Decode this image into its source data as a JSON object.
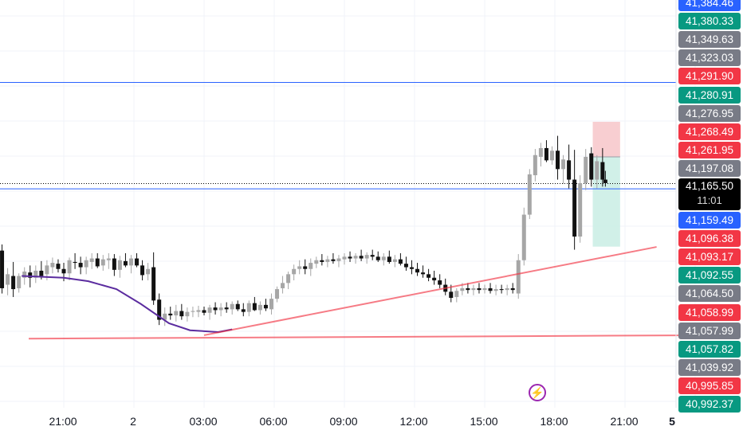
{
  "chart_data": {
    "type": "candlestick",
    "x_axis": {
      "tick_labels": [
        "21:00",
        "2",
        "03:00",
        "06:00",
        "09:00",
        "12:00",
        "15:00",
        "18:00",
        "21:00",
        "5"
      ],
      "bold_labels": [
        "5"
      ]
    },
    "price_labels": [
      {
        "value": "41,384.46",
        "color": "#2962ff"
      },
      {
        "value": "41,380.33",
        "color": "#089981"
      },
      {
        "value": "41,349.63",
        "color": "#787b86"
      },
      {
        "value": "41,323.03",
        "color": "#787b86"
      },
      {
        "value": "41,291.90",
        "color": "#f23645"
      },
      {
        "value": "41,280.91",
        "color": "#089981"
      },
      {
        "value": "41,276.95",
        "color": "#787b86"
      },
      {
        "value": "41,268.49",
        "color": "#f23645"
      },
      {
        "value": "41,261.95",
        "color": "#f23645"
      },
      {
        "value": "41,197.08",
        "color": "#787b86"
      },
      {
        "value": "41,159.49",
        "color": "#2962ff"
      },
      {
        "value": "41,096.38",
        "color": "#f23645"
      },
      {
        "value": "41,093.17",
        "color": "#f23645"
      },
      {
        "value": "41,092.55",
        "color": "#089981"
      },
      {
        "value": "41,064.50",
        "color": "#787b86"
      },
      {
        "value": "41,058.99",
        "color": "#f23645"
      },
      {
        "value": "41,057.99",
        "color": "#787b86"
      },
      {
        "value": "41,057.82",
        "color": "#089981"
      },
      {
        "value": "41,039.92",
        "color": "#787b86"
      },
      {
        "value": "40,995.85",
        "color": "#f23645"
      },
      {
        "value": "40,992.37",
        "color": "#089981"
      }
    ],
    "current_price": {
      "value": "41,165.50",
      "countdown": "11:01",
      "color": "#000000"
    },
    "horizontal_lines": [
      {
        "price": 41280.91,
        "color": "#2962ff"
      },
      {
        "price": 41165.5,
        "color": "#000000",
        "style": "dotted"
      },
      {
        "price": 41159.49,
        "color": "#2962ff"
      }
    ],
    "trend_lines": [
      {
        "from": [
          2.0,
          40992.37
        ],
        "to": [
          8.45,
          41093.17
        ],
        "color": "#f23645"
      },
      {
        "from": [
          -0.5,
          40988.5
        ],
        "to": [
          9.15,
          40992.37
        ],
        "color": "#f23645"
      }
    ],
    "moving_average": {
      "color": "#5b2c9f",
      "points": [
        [
          -0.6,
          41060
        ],
        [
          0.0,
          41058
        ],
        [
          0.35,
          41054
        ],
        [
          0.75,
          41045
        ],
        [
          1.1,
          41028
        ],
        [
          1.5,
          41006
        ],
        [
          1.8,
          40998
        ],
        [
          2.2,
          40996
        ],
        [
          2.4,
          40999
        ]
      ]
    },
    "position_tool": {
      "x_start": 7.54,
      "x_end": 7.93,
      "entry": 41196,
      "stop": 41236,
      "target": 41093.5,
      "loss_color": "#f7c6c9",
      "profit_color": "#cceee5"
    },
    "candles": [
      [
        -0.96,
        41116,
        41120,
        41085,
        41089
      ],
      [
        -0.88,
        41089,
        41096,
        41040,
        41046
      ],
      [
        -0.8,
        41050,
        41069,
        41038,
        41062
      ],
      [
        -0.72,
        41060,
        41076,
        41036,
        41045
      ],
      [
        -0.64,
        41046,
        41063,
        41041,
        41060
      ],
      [
        -0.56,
        41058,
        41070,
        41050,
        41065
      ],
      [
        -0.48,
        41064,
        41072,
        41047,
        41058
      ],
      [
        -0.4,
        41058,
        41072,
        41052,
        41066
      ],
      [
        -0.32,
        41066,
        41077,
        41056,
        41060
      ],
      [
        -0.24,
        41062,
        41078,
        41055,
        41072
      ],
      [
        -0.16,
        41070,
        41081,
        41063,
        41075
      ],
      [
        -0.08,
        41074,
        41079,
        41064,
        41068
      ],
      [
        0.0,
        41068,
        41075,
        41054,
        41063
      ],
      [
        0.08,
        41063,
        41081,
        41055,
        41078
      ],
      [
        0.16,
        41076,
        41086,
        41068,
        41075
      ],
      [
        0.24,
        41075,
        41082,
        41062,
        41070
      ],
      [
        0.32,
        41070,
        41082,
        41062,
        41078
      ],
      [
        0.4,
        41076,
        41086,
        41068,
        41080
      ],
      [
        0.48,
        41080,
        41086,
        41069,
        41071
      ],
      [
        0.56,
        41072,
        41084,
        41066,
        41079
      ],
      [
        0.64,
        41078,
        41086,
        41068,
        41080
      ],
      [
        0.72,
        41080,
        41085,
        41060,
        41067
      ],
      [
        0.8,
        41067,
        41083,
        41058,
        41078
      ],
      [
        0.88,
        41077,
        41086,
        41070,
        41072
      ],
      [
        0.96,
        41072,
        41084,
        41063,
        41080
      ],
      [
        1.04,
        41080,
        41086,
        41070,
        41072
      ],
      [
        1.12,
        41072,
        41078,
        41055,
        41061
      ],
      [
        1.2,
        41062,
        41075,
        41055,
        41068
      ],
      [
        1.28,
        41070,
        41087,
        41027,
        41032
      ],
      [
        1.36,
        41033,
        41040,
        41004,
        41010
      ],
      [
        1.44,
        41010,
        41024,
        41003,
        41017
      ],
      [
        1.52,
        41017,
        41025,
        41010,
        41015
      ],
      [
        1.6,
        41015,
        41027,
        41008,
        41020
      ],
      [
        1.68,
        41020,
        41028,
        41010,
        41014
      ],
      [
        1.76,
        41014,
        41024,
        41008,
        41019
      ],
      [
        1.84,
        41019,
        41025,
        41013,
        41020
      ],
      [
        1.92,
        41019,
        41026,
        41013,
        41021
      ],
      [
        2.0,
        41021,
        41025,
        41015,
        41018
      ],
      [
        2.08,
        41018,
        41027,
        41010,
        41024
      ],
      [
        2.16,
        41024,
        41030,
        41016,
        41021
      ],
      [
        2.24,
        41021,
        41029,
        41014,
        41024
      ],
      [
        2.32,
        41024,
        41030,
        41018,
        41022
      ],
      [
        2.4,
        41022,
        41031,
        41016,
        41028
      ],
      [
        2.48,
        41028,
        41032,
        41020,
        41022
      ],
      [
        2.56,
        41022,
        41029,
        41014,
        41019
      ],
      [
        2.64,
        41019,
        41032,
        41014,
        41029
      ],
      [
        2.72,
        41029,
        41036,
        41020,
        41021
      ],
      [
        2.8,
        41021,
        41031,
        41016,
        41027
      ],
      [
        2.88,
        41027,
        41034,
        41020,
        41023
      ],
      [
        2.96,
        41022,
        41040,
        41016,
        41034
      ],
      [
        3.04,
        41034,
        41048,
        41030,
        41045
      ],
      [
        3.12,
        41046,
        41060,
        41040,
        41052
      ],
      [
        3.2,
        41052,
        41065,
        41045,
        41062
      ],
      [
        3.28,
        41062,
        41073,
        41055,
        41068
      ],
      [
        3.36,
        41068,
        41078,
        41062,
        41071
      ],
      [
        3.44,
        41071,
        41079,
        41062,
        41068
      ],
      [
        3.52,
        41068,
        41080,
        41060,
        41075
      ],
      [
        3.6,
        41074,
        41082,
        41069,
        41078
      ],
      [
        3.68,
        41078,
        41085,
        41072,
        41076
      ],
      [
        3.76,
        41076,
        41083,
        41070,
        41079
      ],
      [
        3.84,
        41079,
        41086,
        41074,
        41077
      ],
      [
        3.92,
        41077,
        41084,
        41070,
        41080
      ],
      [
        4.0,
        41079,
        41086,
        41073,
        41082
      ],
      [
        4.08,
        41082,
        41088,
        41076,
        41080
      ],
      [
        4.16,
        41080,
        41086,
        41074,
        41083
      ],
      [
        4.24,
        41083,
        41090,
        41077,
        41080
      ],
      [
        4.32,
        41080,
        41087,
        41074,
        41084
      ],
      [
        4.4,
        41084,
        41090,
        41078,
        41082
      ],
      [
        4.48,
        41082,
        41088,
        41076,
        41078
      ],
      [
        4.56,
        41078,
        41086,
        41072,
        41082
      ],
      [
        4.64,
        41082,
        41089,
        41074,
        41076
      ],
      [
        4.72,
        41076,
        41084,
        41070,
        41079
      ],
      [
        4.8,
        41079,
        41086,
        41072,
        41074
      ],
      [
        4.88,
        41074,
        41082,
        41066,
        41070
      ],
      [
        4.96,
        41070,
        41078,
        41062,
        41068
      ],
      [
        5.04,
        41068,
        41075,
        41060,
        41064
      ],
      [
        5.12,
        41064,
        41072,
        41058,
        41062
      ],
      [
        5.2,
        41062,
        41068,
        41054,
        41058
      ],
      [
        5.28,
        41058,
        41066,
        41050,
        41055
      ],
      [
        5.36,
        41055,
        41062,
        41046,
        41050
      ],
      [
        5.44,
        41050,
        41057,
        41038,
        41042
      ],
      [
        5.52,
        41042,
        41050,
        41030,
        41035
      ],
      [
        5.6,
        41036,
        41046,
        41030,
        41043
      ],
      [
        5.68,
        41043,
        41052,
        41038,
        41046
      ],
      [
        5.76,
        41046,
        41052,
        41040,
        41044
      ],
      [
        5.84,
        41044,
        41050,
        41038,
        41046
      ],
      [
        5.92,
        41046,
        41052,
        41040,
        41044
      ],
      [
        6.0,
        41044,
        41050,
        41040,
        41046
      ],
      [
        6.08,
        41046,
        41052,
        41040,
        41043
      ],
      [
        6.16,
        41043,
        41050,
        41038,
        41045
      ],
      [
        6.24,
        41045,
        41050,
        41040,
        41044
      ],
      [
        6.32,
        41044,
        41050,
        41038,
        41046
      ],
      [
        6.4,
        41046,
        41052,
        41040,
        41044
      ],
      [
        6.48,
        41040,
        41085,
        41034,
        41078
      ],
      [
        6.56,
        41078,
        41138,
        41072,
        41130
      ],
      [
        6.64,
        41130,
        41182,
        41125,
        41176
      ],
      [
        6.72,
        41175,
        41205,
        41168,
        41198
      ],
      [
        6.8,
        41196,
        41212,
        41185,
        41206
      ],
      [
        6.88,
        41206,
        41215,
        41190,
        41192
      ],
      [
        6.96,
        41192,
        41208,
        41187,
        41203
      ],
      [
        7.04,
        41203,
        41220,
        41170,
        41182
      ],
      [
        7.12,
        41182,
        41198,
        41165,
        41193
      ],
      [
        7.2,
        41192,
        41210,
        41160,
        41170
      ],
      [
        7.28,
        41170,
        41204,
        41090,
        41105
      ],
      [
        7.36,
        41105,
        41175,
        41098,
        41166
      ],
      [
        7.44,
        41166,
        41205,
        41158,
        41196
      ],
      [
        7.52,
        41200,
        41207,
        41162,
        41170
      ],
      [
        7.6,
        41170,
        41198,
        41160,
        41191
      ],
      [
        7.68,
        41190,
        41206,
        41162,
        41170
      ],
      [
        7.72,
        41170,
        41180,
        41162,
        41166
      ]
    ]
  }
}
